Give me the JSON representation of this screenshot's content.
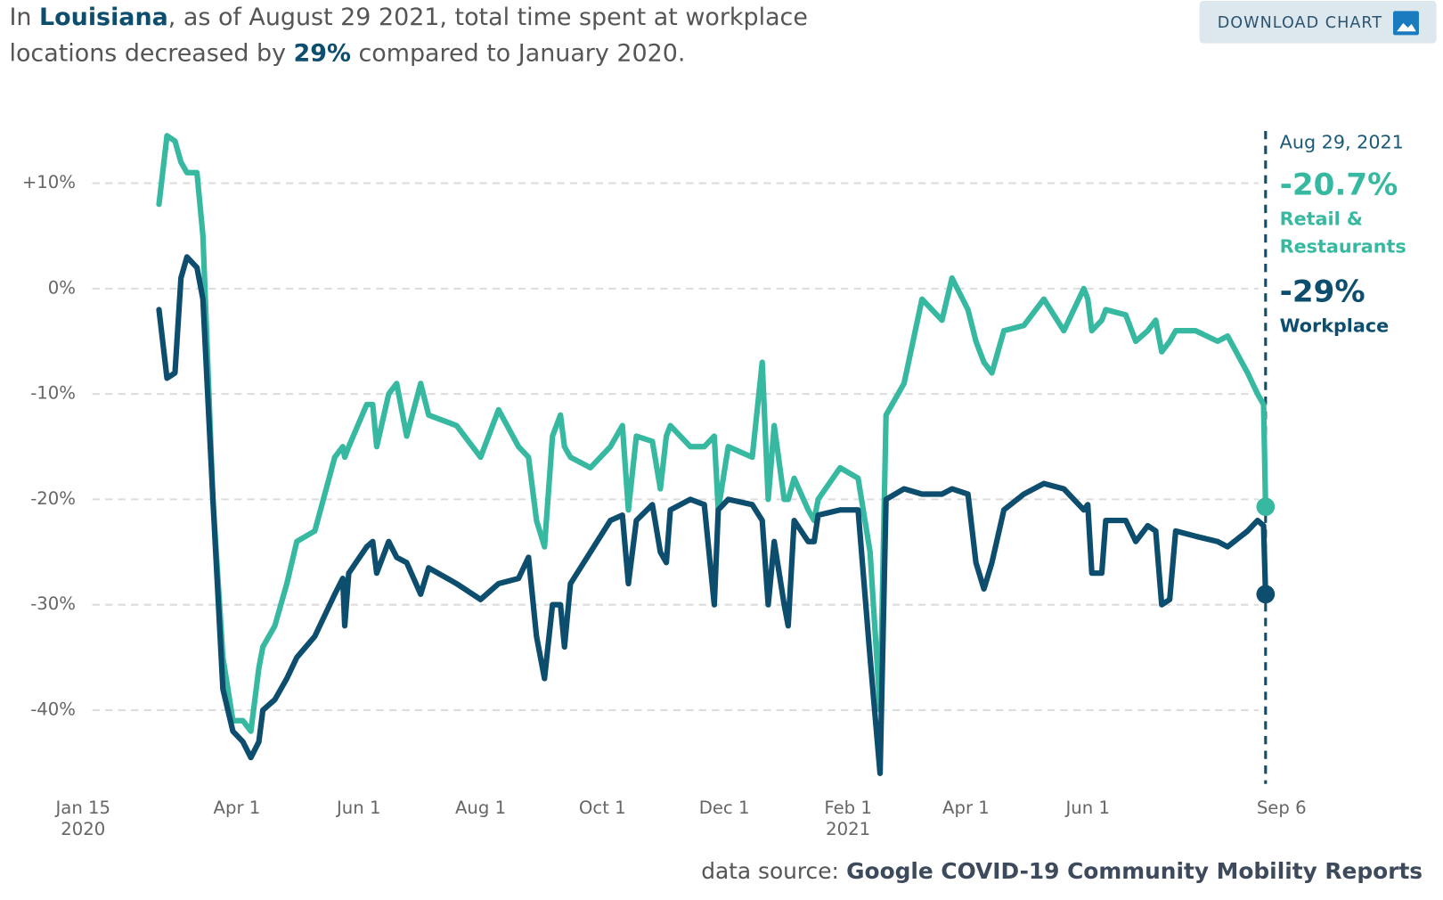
{
  "chart_data": {
    "type": "line",
    "headline": [
      "In ",
      "Louisiana",
      ", as of August 29 2021, total time spent at workplace locations decreased by ",
      "29%",
      " compared to January 2020."
    ],
    "download_label": "DOWNLOAD CHART",
    "source_prefix": "data source:",
    "source": "Google COVID-19 Community Mobility Reports",
    "x": [
      "2020-02-22",
      "2020-02-26",
      "2020-03-01",
      "2020-03-04",
      "2020-03-07",
      "2020-03-12",
      "2020-03-15",
      "2020-03-20",
      "2020-03-25",
      "2020-03-30",
      "2020-04-04",
      "2020-04-08",
      "2020-04-12",
      "2020-04-14",
      "2020-04-20",
      "2020-04-26",
      "2020-05-01",
      "2020-05-10",
      "2020-05-20",
      "2020-05-24",
      "2020-05-25",
      "2020-05-27",
      "2020-06-05",
      "2020-06-08",
      "2020-06-10",
      "2020-06-16",
      "2020-06-20",
      "2020-06-25",
      "2020-07-02",
      "2020-07-06",
      "2020-07-20",
      "2020-08-01",
      "2020-08-10",
      "2020-08-20",
      "2020-08-25",
      "2020-08-29",
      "2020-09-02",
      "2020-09-06",
      "2020-09-10",
      "2020-09-12",
      "2020-09-15",
      "2020-09-25",
      "2020-10-05",
      "2020-10-11",
      "2020-10-14",
      "2020-10-18",
      "2020-10-26",
      "2020-10-30",
      "2020-11-02",
      "2020-11-04",
      "2020-11-14",
      "2020-11-21",
      "2020-11-26",
      "2020-11-28",
      "2020-12-03",
      "2020-12-15",
      "2020-12-20",
      "2020-12-23",
      "2020-12-26",
      "2020-12-31",
      "2021-01-02",
      "2021-01-05",
      "2021-01-12",
      "2021-01-15",
      "2021-01-17",
      "2021-01-28",
      "2021-02-06",
      "2021-02-12",
      "2021-02-17",
      "2021-02-20",
      "2021-03-01",
      "2021-03-10",
      "2021-03-20",
      "2021-03-25",
      "2021-04-02",
      "2021-04-06",
      "2021-04-10",
      "2021-04-14",
      "2021-04-20",
      "2021-04-30",
      "2021-05-10",
      "2021-05-20",
      "2021-05-30",
      "2021-06-01",
      "2021-06-03",
      "2021-06-08",
      "2021-06-10",
      "2021-06-20",
      "2021-06-25",
      "2021-07-01",
      "2021-07-05",
      "2021-07-08",
      "2021-07-12",
      "2021-07-15",
      "2021-07-25",
      "2021-08-05",
      "2021-08-10",
      "2021-08-20",
      "2021-08-25",
      "2021-08-28",
      "2021-08-29"
    ],
    "series": [
      {
        "name": "Retail & Restaurants",
        "color": "#36b9a0",
        "last_label": "-20.7%",
        "values": [
          8,
          14.5,
          14,
          12,
          11,
          11,
          5,
          -20,
          -35,
          -41,
          -41,
          -42,
          -36,
          -34,
          -32,
          -28,
          -24,
          -23,
          -16,
          -15,
          -16,
          -15,
          -11,
          -11,
          -15,
          -10,
          -9,
          -14,
          -9,
          -12,
          -13,
          -16,
          -11.5,
          -15,
          -16,
          -22,
          -24.5,
          -14,
          -12,
          -15,
          -16,
          -17,
          -15,
          -13,
          -21,
          -14,
          -14.5,
          -19,
          -14,
          -13,
          -15,
          -15,
          -14,
          -21,
          -15,
          -16,
          -7,
          -20,
          -13,
          -20,
          -20,
          -18,
          -21,
          -22,
          -20,
          -17,
          -18,
          -25,
          -40,
          -12,
          -9,
          -1,
          -3,
          1,
          -2,
          -5,
          -7,
          -8,
          -4,
          -3.5,
          -1,
          -4,
          0,
          -1,
          -4,
          -3,
          -2,
          -2.5,
          -5,
          -4,
          -3,
          -6,
          -5,
          -4,
          -4,
          -5,
          -4.5,
          -8,
          -10,
          -11,
          -20.7
        ]
      },
      {
        "name": "Workplace",
        "color": "#0d4d6e",
        "last_label": "-29%",
        "values": [
          -2,
          -8.5,
          -8,
          1,
          3,
          2,
          -1,
          -20,
          -38,
          -42,
          -43,
          -44.5,
          -43,
          -40,
          -39,
          -37,
          -35,
          -33,
          -29,
          -27.5,
          -32,
          -27,
          -24.5,
          -24,
          -27,
          -24,
          -25.5,
          -26,
          -29,
          -26.5,
          -28,
          -29.5,
          -28,
          -27.5,
          -25.5,
          -33,
          -37,
          -30,
          -30,
          -34,
          -28,
          -25,
          -22,
          -21.5,
          -28,
          -22,
          -20.5,
          -25,
          -26,
          -21,
          -20,
          -20.5,
          -30,
          -21,
          -20,
          -20.5,
          -22,
          -30,
          -24,
          -30,
          -32,
          -22,
          -24,
          -24,
          -21.5,
          -21,
          -21,
          -35,
          -46,
          -20,
          -19,
          -19.5,
          -19.5,
          -19,
          -19.5,
          -26,
          -28.5,
          -26,
          -21,
          -19.5,
          -18.5,
          -19,
          -21,
          -20.5,
          -27,
          -27,
          -22,
          -22,
          -24,
          -22.5,
          -23,
          -30,
          -29.5,
          -23,
          -23.5,
          -24,
          -24.5,
          -23,
          -22,
          -22.5,
          -29
        ]
      }
    ],
    "annotation": {
      "x": "2021-08-29",
      "label": "Aug 29, 2021"
    },
    "xlim": [
      "2020-01-15",
      "2021-09-06"
    ],
    "xticks": [
      {
        "value": "2020-01-15",
        "label": "Jan 15",
        "year": "2020"
      },
      {
        "value": "2020-04-01",
        "label": "Apr 1"
      },
      {
        "value": "2020-06-01",
        "label": "Jun 1"
      },
      {
        "value": "2020-08-01",
        "label": "Aug 1"
      },
      {
        "value": "2020-10-01",
        "label": "Oct 1"
      },
      {
        "value": "2020-12-01",
        "label": "Dec 1"
      },
      {
        "value": "2021-02-01",
        "label": "Feb 1",
        "year": "2021"
      },
      {
        "value": "2021-04-01",
        "label": "Apr 1"
      },
      {
        "value": "2021-06-01",
        "label": "Jun 1"
      },
      {
        "value": "2021-09-06",
        "label": "Sep 6"
      }
    ],
    "ylim": [
      -47,
      15
    ],
    "yticks": [
      {
        "value": 10,
        "label": "+10%"
      },
      {
        "value": 0,
        "label": "0%"
      },
      {
        "value": -10,
        "label": "-10%"
      },
      {
        "value": -20,
        "label": "-20%"
      },
      {
        "value": -30,
        "label": "-30%"
      },
      {
        "value": -40,
        "label": "-40%"
      }
    ],
    "grid": true
  }
}
